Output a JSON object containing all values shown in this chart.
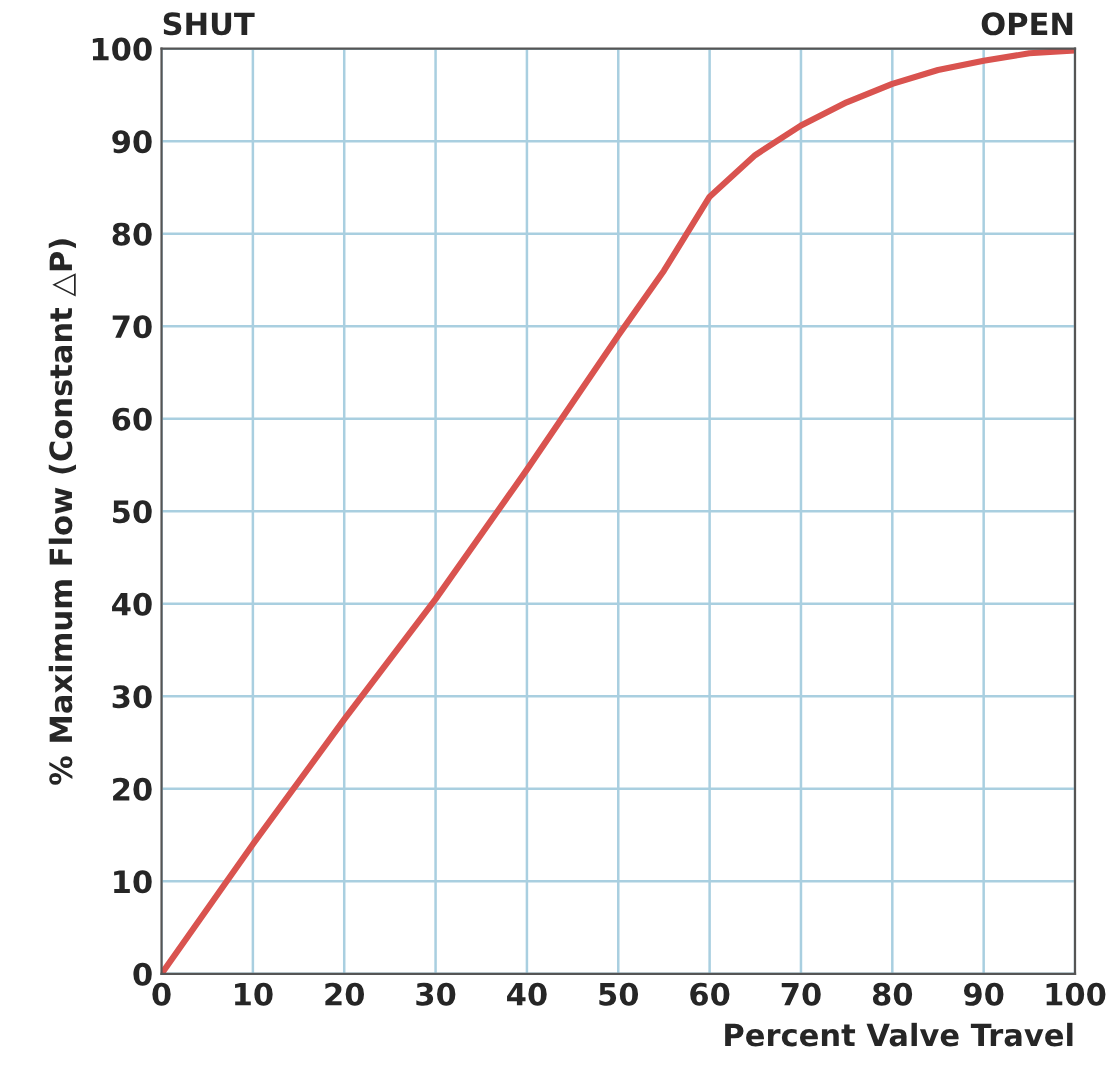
{
  "chart_data": {
    "type": "line",
    "xlabel": "Percent Valve Travel",
    "ylabel": "% Maximum Flow (Constant △P)",
    "annotations": [
      "SHUT",
      "OPEN"
    ],
    "x": [
      0,
      10,
      20,
      30,
      40,
      50,
      55,
      60,
      65,
      70,
      75,
      80,
      85,
      90,
      95,
      100
    ],
    "series": [
      {
        "color": "#d9534f",
        "values": [
          0,
          14,
          27.5,
          40.5,
          54.5,
          69,
          76,
          84,
          88.5,
          91.7,
          94.2,
          96.2,
          97.7,
          98.7,
          99.5,
          99.8
        ]
      }
    ],
    "xlim": [
      0,
      100
    ],
    "ylim": [
      0,
      100
    ],
    "xticks": [
      0,
      10,
      20,
      30,
      40,
      50,
      60,
      70,
      80,
      90,
      100
    ],
    "yticks": [
      0,
      10,
      20,
      30,
      40,
      50,
      60,
      70,
      80,
      90,
      100
    ],
    "grid": true,
    "marker": "none",
    "line_style": "solid"
  }
}
